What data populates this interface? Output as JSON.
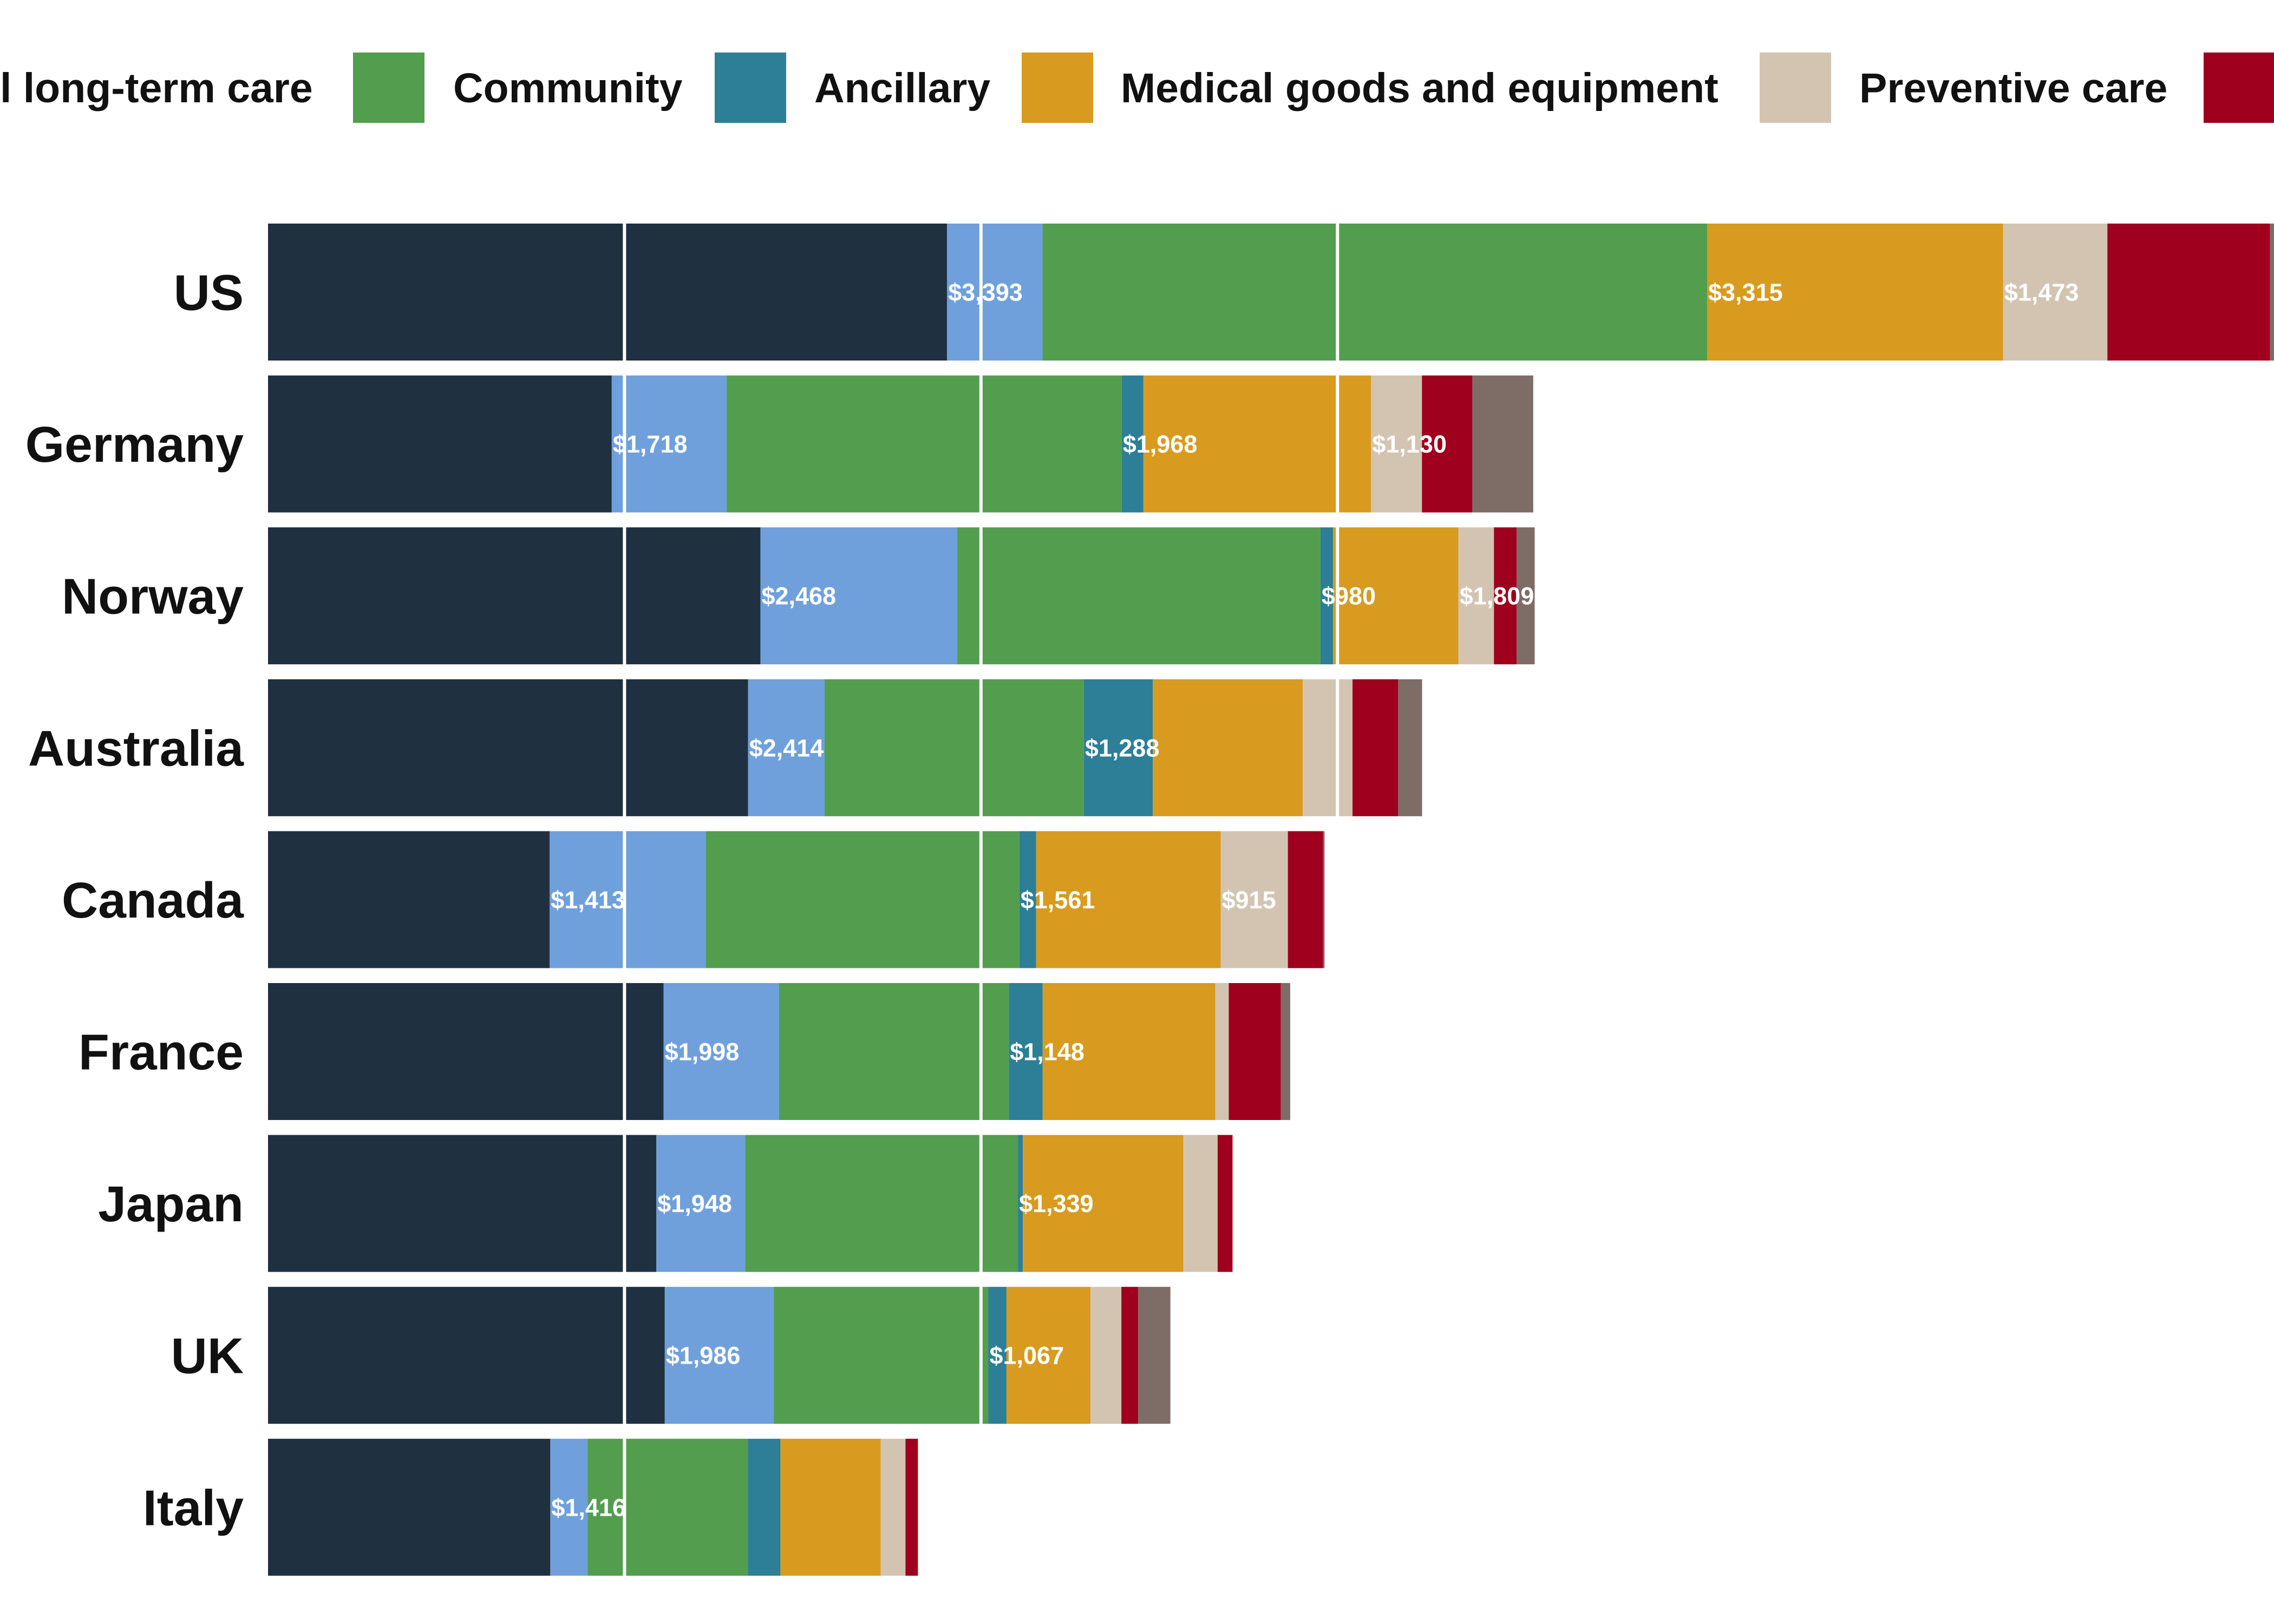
{
  "chart_data": {
    "type": "bar",
    "orientation": "horizontal",
    "stacked": true,
    "categories": [
      "US",
      "Germany",
      "Norway",
      "Australia",
      "Canada",
      "France",
      "Japan",
      "UK",
      "Italy"
    ],
    "legend": {
      "placement": "top",
      "entries": [
        {
          "label": "l long-term care",
          "color": "#8B1A2E"
        },
        {
          "label": "Community",
          "color": "#529E4E"
        },
        {
          "label": "Ancillary",
          "color": "#2C7F96"
        },
        {
          "label": "Medical goods and equipment",
          "color": "#D89B1F"
        },
        {
          "label": "Preventive care",
          "color": "#D3C4B2"
        },
        {
          "label": "",
          "color": "#9E001D"
        }
      ]
    },
    "series": [
      {
        "color": "#1F3140",
        "values": [
          4686,
          2372,
          3398,
          3313,
          1944,
          2730,
          2680,
          2738,
          1948
        ]
      },
      {
        "color": "#6FA0DC",
        "values": [
          659,
          793,
          1358,
          528,
          1077,
          797,
          613,
          752,
          258
        ]
      },
      {
        "name": "Community",
        "color": "#529E4E",
        "values": [
          4586,
          2726,
          2507,
          1789,
          2164,
          1585,
          1882,
          1481,
          1106
        ]
      },
      {
        "name": "Ancillary",
        "color": "#2C7F96",
        "values": [
          0,
          150,
          86,
          476,
          116,
          234,
          34,
          125,
          224
        ]
      },
      {
        "name": "Medical goods and equipment",
        "color": "#D89B1F",
        "values": [
          2043,
          1571,
          866,
          1035,
          1273,
          1191,
          1108,
          580,
          692
        ]
      },
      {
        "name": "Preventive care",
        "color": "#D3C4B2",
        "values": [
          719,
          351,
          245,
          343,
          464,
          93,
          236,
          213,
          171
        ]
      },
      {
        "color": "#9E001D",
        "values": [
          1123,
          348,
          157,
          315,
          243,
          359,
          103,
          115,
          86
        ]
      },
      {
        "color": "#7E6C67",
        "values": [
          72,
          420,
          124,
          165,
          10,
          65,
          0,
          223,
          0
        ]
      }
    ],
    "value_labels": [
      {
        "category": "US",
        "texts": [
          "$3,393",
          "$3,315",
          "$1,473"
        ]
      },
      {
        "category": "Germany",
        "texts": [
          "$1,718",
          "$1,968",
          "$1,130"
        ]
      },
      {
        "category": "Norway",
        "texts": [
          "$2,468",
          "$980",
          "$1,809"
        ]
      },
      {
        "category": "Australia",
        "texts": [
          "$2,414",
          "$1,288"
        ]
      },
      {
        "category": "Canada",
        "texts": [
          "$1,413",
          "$1,561",
          "$915"
        ]
      },
      {
        "category": "France",
        "texts": [
          "$1,998",
          "$1,148"
        ]
      },
      {
        "category": "Japan",
        "texts": [
          "$1,948",
          "$1,339"
        ]
      },
      {
        "category": "UK",
        "texts": [
          "$1,986",
          "$1,067"
        ]
      },
      {
        "category": "Italy",
        "texts": [
          "$1,416"
        ]
      }
    ],
    "xlim": [
      0,
      14000
    ],
    "grid": true,
    "xlabel": "",
    "ylabel": "",
    "title": ""
  }
}
